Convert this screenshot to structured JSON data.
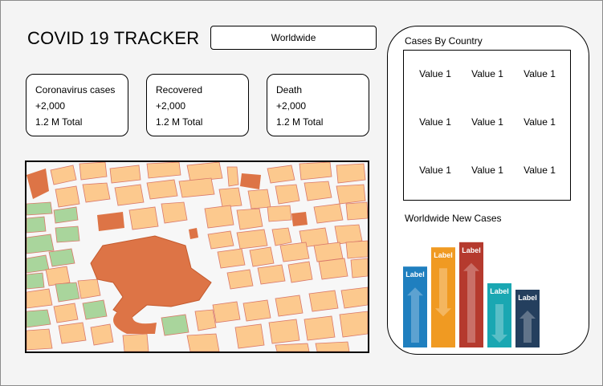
{
  "app": {
    "title": "COVID 19 TRACKER",
    "region_selector": "Worldwide"
  },
  "stats": [
    {
      "label": "Coronavirus cases",
      "delta": "+2,000",
      "total": "1.2 M Total"
    },
    {
      "label": "Recovered",
      "delta": "+2,000",
      "total": "1.2 M Total"
    },
    {
      "label": "Death",
      "delta": "+2,000",
      "total": "1.2 M Total"
    }
  ],
  "cases_by_country": {
    "title": "Cases By Country",
    "rows": [
      [
        "Value 1",
        "Value 1",
        "Value 1"
      ],
      [
        "Value 1",
        "Value 1",
        "Value 1"
      ],
      [
        "Value 1",
        "Value 1",
        "Value 1"
      ]
    ]
  },
  "new_cases_chart": {
    "title": "Worldwide New Cases",
    "bars": [
      {
        "label": "Label",
        "color": "#1f7fbf",
        "arrow": "up",
        "height_fraction": 0.63
      },
      {
        "label": "Label",
        "color": "#f09a22",
        "arrow": "down",
        "height_fraction": 0.78
      },
      {
        "label": "Label",
        "color": "#b53a2e",
        "arrow": "up",
        "height_fraction": 0.82
      },
      {
        "label": "Label",
        "color": "#1aa7b2",
        "arrow": "down",
        "height_fraction": 0.5
      },
      {
        "label": "Label",
        "color": "#243f5e",
        "arrow": "up",
        "height_fraction": 0.45
      }
    ]
  },
  "colors": {
    "map_block": "#fcc98e",
    "map_park": "#a9d59c",
    "map_highlight": "#dd7446",
    "map_road": "#f7f7f7"
  }
}
